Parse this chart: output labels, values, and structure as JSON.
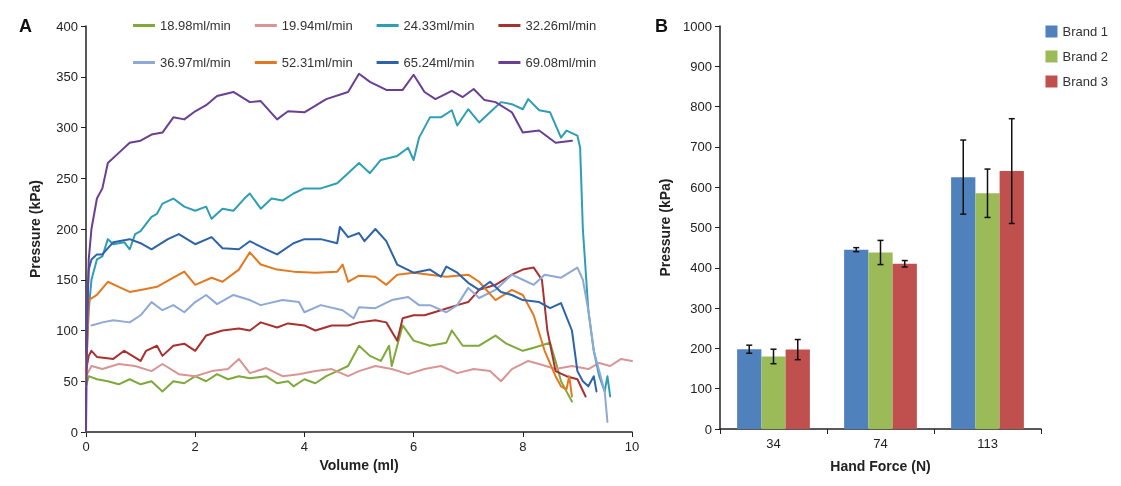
{
  "chart_data": [
    {
      "type": "line",
      "title": "A",
      "xlabel": "Volume (ml)",
      "ylabel": "Pressure (kPa)",
      "xlim": [
        0,
        10
      ],
      "xticks": [
        0,
        2,
        4,
        6,
        8,
        10
      ],
      "ylim": [
        0,
        400
      ],
      "yticks": [
        0,
        50,
        100,
        150,
        200,
        250,
        300,
        350,
        400
      ],
      "grid": false,
      "legend": "top",
      "marker": "none",
      "line_style": "solid",
      "series": [
        {
          "name": "18.98ml/min",
          "color": "#7fa93a",
          "x": [
            0,
            0.05,
            0.2,
            0.4,
            0.6,
            0.8,
            1.0,
            1.2,
            1.4,
            1.6,
            1.8,
            2.0,
            2.2,
            2.4,
            2.6,
            2.8,
            3.0,
            3.3,
            3.5,
            3.7,
            3.8,
            4.0,
            4.2,
            4.4,
            4.6,
            4.8,
            5.0,
            5.2,
            5.4,
            5.55,
            5.6,
            5.8,
            6.0,
            6.3,
            6.6,
            6.7,
            6.9,
            7.2,
            7.5,
            7.7,
            8.0,
            8.2,
            8.5,
            8.6,
            8.7,
            8.8,
            8.9
          ],
          "values": [
            45,
            55,
            52,
            50,
            47,
            52,
            47,
            50,
            40,
            50,
            48,
            55,
            50,
            57,
            52,
            55,
            53,
            55,
            48,
            50,
            45,
            52,
            48,
            55,
            60,
            65,
            85,
            75,
            70,
            85,
            65,
            105,
            90,
            85,
            88,
            100,
            85,
            85,
            95,
            87,
            80,
            83,
            88,
            70,
            50,
            40,
            30
          ]
        },
        {
          "name": "19.94ml/min",
          "color": "#d99594",
          "x": [
            0,
            0.1,
            0.3,
            0.6,
            0.9,
            1.2,
            1.4,
            1.7,
            2.0,
            2.3,
            2.6,
            2.8,
            3.0,
            3.3,
            3.6,
            3.9,
            4.2,
            4.5,
            4.8,
            5.0,
            5.3,
            5.6,
            5.9,
            6.2,
            6.5,
            6.8,
            7.1,
            7.4,
            7.6,
            7.8,
            8.1,
            8.3,
            8.6,
            8.9,
            9.2,
            9.4,
            9.6,
            9.8,
            10.0
          ],
          "values": [
            55,
            65,
            62,
            67,
            65,
            60,
            67,
            57,
            55,
            60,
            62,
            72,
            58,
            63,
            55,
            57,
            60,
            62,
            55,
            60,
            65,
            62,
            57,
            62,
            65,
            58,
            62,
            60,
            50,
            62,
            70,
            67,
            62,
            65,
            62,
            68,
            65,
            72,
            70
          ]
        },
        {
          "name": "24.33ml/min",
          "color": "#2e9eb5",
          "x": [
            0,
            0.05,
            0.1,
            0.2,
            0.3,
            0.4,
            0.5,
            0.7,
            0.8,
            0.9,
            1.0,
            1.1,
            1.2,
            1.3,
            1.4,
            1.6,
            1.8,
            2.0,
            2.2,
            2.3,
            2.5,
            2.7,
            2.9,
            3.0,
            3.2,
            3.4,
            3.6,
            3.8,
            4.0,
            4.3,
            4.6,
            4.8,
            5.0,
            5.2,
            5.4,
            5.7,
            5.9,
            6.0,
            6.1,
            6.3,
            6.5,
            6.7,
            6.8,
            7.0,
            7.2,
            7.4,
            7.6,
            7.8,
            8.0,
            8.1,
            8.3,
            8.5,
            8.7,
            8.8,
            9.0,
            9.05,
            9.1,
            9.2,
            9.3,
            9.4,
            9.5,
            9.55,
            9.6
          ],
          "values": [
            60,
            120,
            150,
            170,
            173,
            190,
            185,
            187,
            180,
            195,
            198,
            205,
            212,
            215,
            225,
            230,
            222,
            218,
            222,
            210,
            220,
            218,
            230,
            235,
            220,
            230,
            228,
            235,
            240,
            240,
            245,
            255,
            265,
            255,
            268,
            272,
            280,
            268,
            290,
            310,
            310,
            317,
            302,
            318,
            305,
            315,
            325,
            323,
            318,
            328,
            317,
            315,
            290,
            297,
            292,
            280,
            200,
            120,
            80,
            55,
            40,
            55,
            35
          ]
        },
        {
          "name": "32.26ml/min",
          "color": "#a8312f",
          "x": [
            0,
            0.05,
            0.1,
            0.2,
            0.5,
            0.7,
            1.0,
            1.1,
            1.3,
            1.4,
            1.6,
            1.8,
            2.0,
            2.2,
            2.5,
            2.8,
            3.0,
            3.2,
            3.5,
            3.7,
            4.0,
            4.2,
            4.5,
            4.8,
            5.0,
            5.3,
            5.5,
            5.7,
            5.8,
            6.0,
            6.2,
            6.5,
            6.8,
            7.0,
            7.2,
            7.5,
            7.8,
            8.0,
            8.2,
            8.35,
            8.45,
            8.6,
            8.8,
            9.0,
            9.15
          ],
          "values": [
            60,
            75,
            80,
            74,
            72,
            80,
            70,
            80,
            85,
            75,
            85,
            87,
            80,
            95,
            100,
            102,
            100,
            108,
            103,
            107,
            105,
            100,
            105,
            105,
            108,
            110,
            108,
            90,
            112,
            115,
            115,
            120,
            125,
            128,
            140,
            145,
            155,
            160,
            162,
            150,
            100,
            60,
            55,
            52,
            35
          ]
        },
        {
          "name": "36.97ml/min",
          "color": "#8fa9d6",
          "x": [
            0.1,
            0.3,
            0.5,
            0.8,
            1.0,
            1.2,
            1.4,
            1.6,
            1.8,
            2.0,
            2.2,
            2.4,
            2.7,
            3.0,
            3.2,
            3.6,
            3.9,
            4.0,
            4.3,
            4.7,
            4.9,
            5.0,
            5.3,
            5.6,
            5.9,
            6.1,
            6.3,
            6.6,
            6.8,
            7.0,
            7.2,
            7.5,
            7.8,
            8.0,
            8.2,
            8.4,
            8.7,
            9.0,
            9.1,
            9.2,
            9.3,
            9.4,
            9.5,
            9.55
          ],
          "values": [
            105,
            108,
            110,
            108,
            115,
            128,
            120,
            125,
            118,
            128,
            135,
            126,
            135,
            130,
            125,
            130,
            128,
            118,
            125,
            120,
            112,
            123,
            122,
            130,
            133,
            125,
            125,
            118,
            125,
            142,
            132,
            140,
            155,
            150,
            145,
            155,
            152,
            162,
            150,
            120,
            80,
            60,
            40,
            10
          ]
        },
        {
          "name": "52.31ml/min",
          "color": "#e4781f",
          "x": [
            0,
            0.05,
            0.2,
            0.4,
            0.6,
            0.8,
            1.0,
            1.3,
            1.6,
            1.8,
            2.0,
            2.3,
            2.5,
            2.8,
            3.0,
            3.2,
            3.5,
            3.8,
            4.2,
            4.6,
            4.7,
            4.8,
            5.0,
            5.3,
            5.5,
            5.7,
            6.0,
            6.3,
            6.6,
            7.0,
            7.2,
            7.5,
            7.8,
            8.0,
            8.2,
            8.4,
            8.6,
            8.7,
            8.8,
            8.85,
            8.9
          ],
          "values": [
            50,
            130,
            135,
            148,
            143,
            138,
            140,
            143,
            152,
            158,
            145,
            152,
            148,
            160,
            177,
            165,
            160,
            158,
            157,
            158,
            165,
            148,
            154,
            153,
            145,
            155,
            157,
            155,
            153,
            155,
            148,
            130,
            140,
            135,
            115,
            80,
            55,
            45,
            42,
            55,
            35
          ]
        },
        {
          "name": "65.24ml/min",
          "color": "#2d63aa",
          "x": [
            0,
            0.05,
            0.1,
            0.2,
            0.3,
            0.5,
            0.8,
            1.0,
            1.2,
            1.5,
            1.7,
            2.0,
            2.3,
            2.5,
            2.8,
            3.0,
            3.3,
            3.5,
            3.8,
            4.0,
            4.3,
            4.6,
            4.65,
            4.8,
            5.0,
            5.1,
            5.3,
            5.5,
            5.7,
            6.0,
            6.3,
            6.5,
            6.6,
            6.8,
            7.0,
            7.2,
            7.4,
            7.6,
            7.8,
            8.0,
            8.3,
            8.5,
            8.7,
            8.9,
            9.0,
            9.1,
            9.2,
            9.3,
            9.35
          ],
          "values": [
            100,
            160,
            170,
            175,
            175,
            187,
            190,
            186,
            180,
            190,
            195,
            185,
            192,
            181,
            180,
            188,
            180,
            175,
            186,
            190,
            190,
            186,
            202,
            192,
            196,
            188,
            200,
            188,
            165,
            157,
            160,
            153,
            163,
            157,
            147,
            140,
            148,
            138,
            135,
            130,
            128,
            122,
            127,
            100,
            60,
            50,
            45,
            55,
            40
          ]
        },
        {
          "name": "69.08ml/min",
          "color": "#6a3f93",
          "x": [
            0,
            0.02,
            0.05,
            0.1,
            0.2,
            0.3,
            0.4,
            0.6,
            0.8,
            1.0,
            1.2,
            1.4,
            1.6,
            1.8,
            2.0,
            2.2,
            2.4,
            2.7,
            3.0,
            3.2,
            3.5,
            3.7,
            4.0,
            4.4,
            4.8,
            5.0,
            5.2,
            5.5,
            5.8,
            6.0,
            6.2,
            6.4,
            6.7,
            6.9,
            7.1,
            7.3,
            7.5,
            7.8,
            8.0,
            8.3,
            8.6,
            8.9
          ],
          "values": [
            0,
            100,
            170,
            200,
            230,
            240,
            265,
            275,
            285,
            287,
            293,
            295,
            310,
            308,
            316,
            322,
            331,
            335,
            325,
            326,
            308,
            316,
            315,
            328,
            335,
            353,
            345,
            337,
            337,
            352,
            335,
            328,
            336,
            330,
            338,
            327,
            325,
            315,
            295,
            297,
            285,
            287
          ]
        }
      ]
    },
    {
      "type": "bar",
      "title": "B",
      "xlabel": "Hand Force (N)",
      "ylabel": "Pressure (kPa)",
      "categories": [
        "34",
        "74",
        "113"
      ],
      "ylim": [
        0,
        1000
      ],
      "yticks": [
        0,
        100,
        200,
        300,
        400,
        500,
        600,
        700,
        800,
        900,
        1000
      ],
      "grid": false,
      "legend": "top right",
      "series": [
        {
          "name": "Brand 1",
          "color": "#4f81bd",
          "values": [
            198,
            445,
            625
          ],
          "errors": [
            10,
            5,
            92
          ]
        },
        {
          "name": "Brand 2",
          "color": "#9bbb59",
          "values": [
            180,
            438,
            585
          ],
          "errors": [
            18,
            30,
            60
          ]
        },
        {
          "name": "Brand 3",
          "color": "#c0504d",
          "values": [
            197,
            410,
            640
          ],
          "errors": [
            25,
            8,
            130
          ]
        }
      ]
    }
  ]
}
